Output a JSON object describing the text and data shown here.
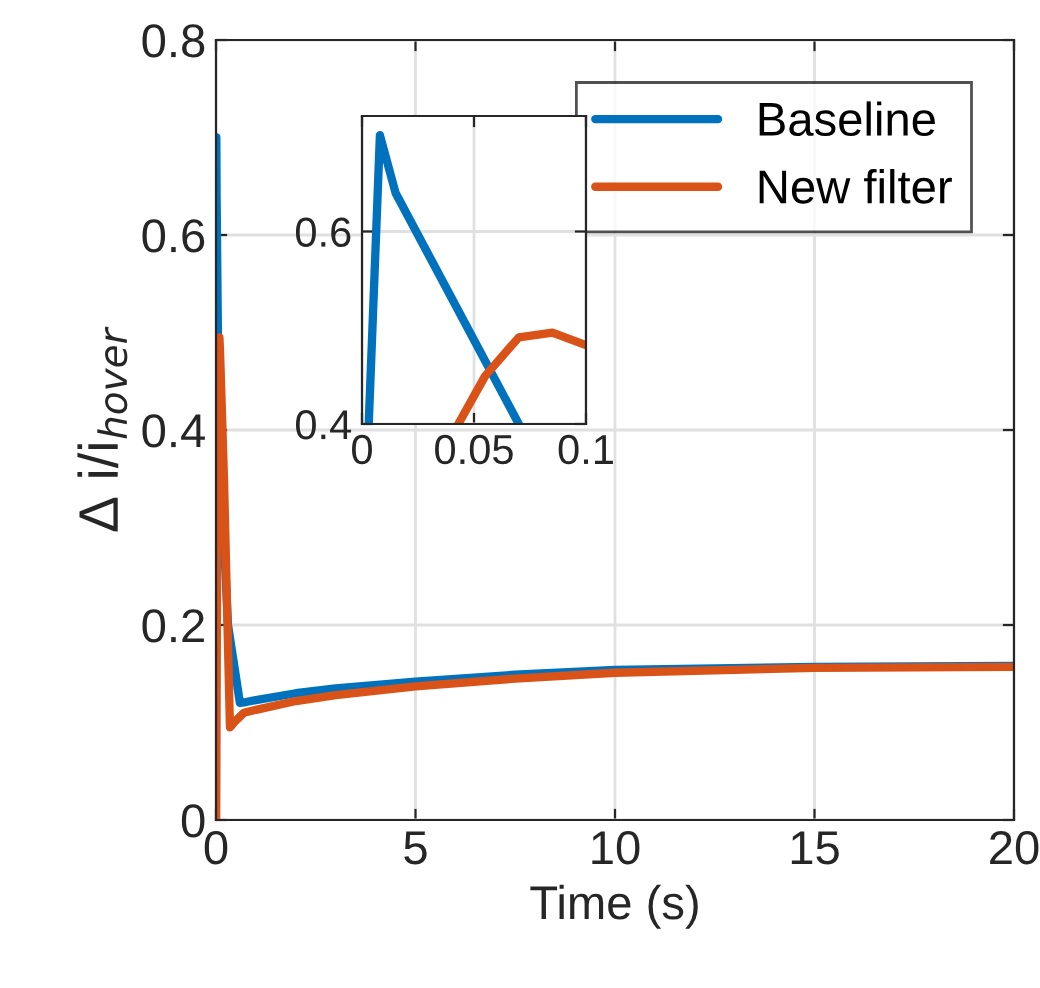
{
  "chart_data": [
    {
      "type": "line",
      "xlabel": "Time (s)",
      "ylabel": "Δ i/i$_{hover}$",
      "xlim": [
        0,
        20
      ],
      "ylim": [
        0,
        0.8
      ],
      "xticks": [
        0,
        5,
        10,
        15,
        20
      ],
      "yticks": [
        0,
        0.2,
        0.4,
        0.6,
        0.8
      ],
      "grid": true,
      "legend": "top right",
      "series": [
        {
          "name": "Baseline",
          "color": "#0072bd",
          "x": [
            0,
            0.003,
            0.008,
            0.015,
            0.07,
            0.3,
            0.6,
            0.75,
            1,
            2,
            3,
            5,
            7.5,
            10,
            15,
            20
          ],
          "values": [
            0,
            0.4,
            0.7,
            0.64,
            0.4,
            0.2,
            0.12,
            0.121,
            0.123,
            0.13,
            0.135,
            0.142,
            0.149,
            0.154,
            0.157,
            0.158
          ]
        },
        {
          "name": "New filter",
          "color": "#d95319",
          "x": [
            0,
            0.043,
            0.07,
            0.085,
            0.1,
            0.2,
            0.35,
            0.45,
            0.7,
            1,
            2,
            3,
            5,
            7.5,
            10,
            15,
            20
          ],
          "values": [
            0,
            0.4,
            0.49,
            0.495,
            0.482,
            0.35,
            0.095,
            0.1,
            0.11,
            0.113,
            0.122,
            0.128,
            0.137,
            0.145,
            0.151,
            0.156,
            0.157
          ]
        }
      ]
    },
    {
      "type": "line",
      "xlim": [
        0,
        0.1
      ],
      "ylim": [
        0.4,
        0.72
      ],
      "xticks": [
        0,
        0.05,
        0.1
      ],
      "yticks": [
        0.4,
        0.6
      ],
      "grid": true,
      "series": [
        {
          "color": "#0072bd",
          "x": [
            0.003,
            0.008,
            0.015,
            0.07
          ],
          "values": [
            0.4,
            0.7,
            0.64,
            0.4
          ]
        },
        {
          "color": "#d95319",
          "x": [
            0.043,
            0.055,
            0.07,
            0.085,
            0.1
          ],
          "values": [
            0.4,
            0.45,
            0.49,
            0.495,
            0.482
          ]
        }
      ]
    }
  ]
}
